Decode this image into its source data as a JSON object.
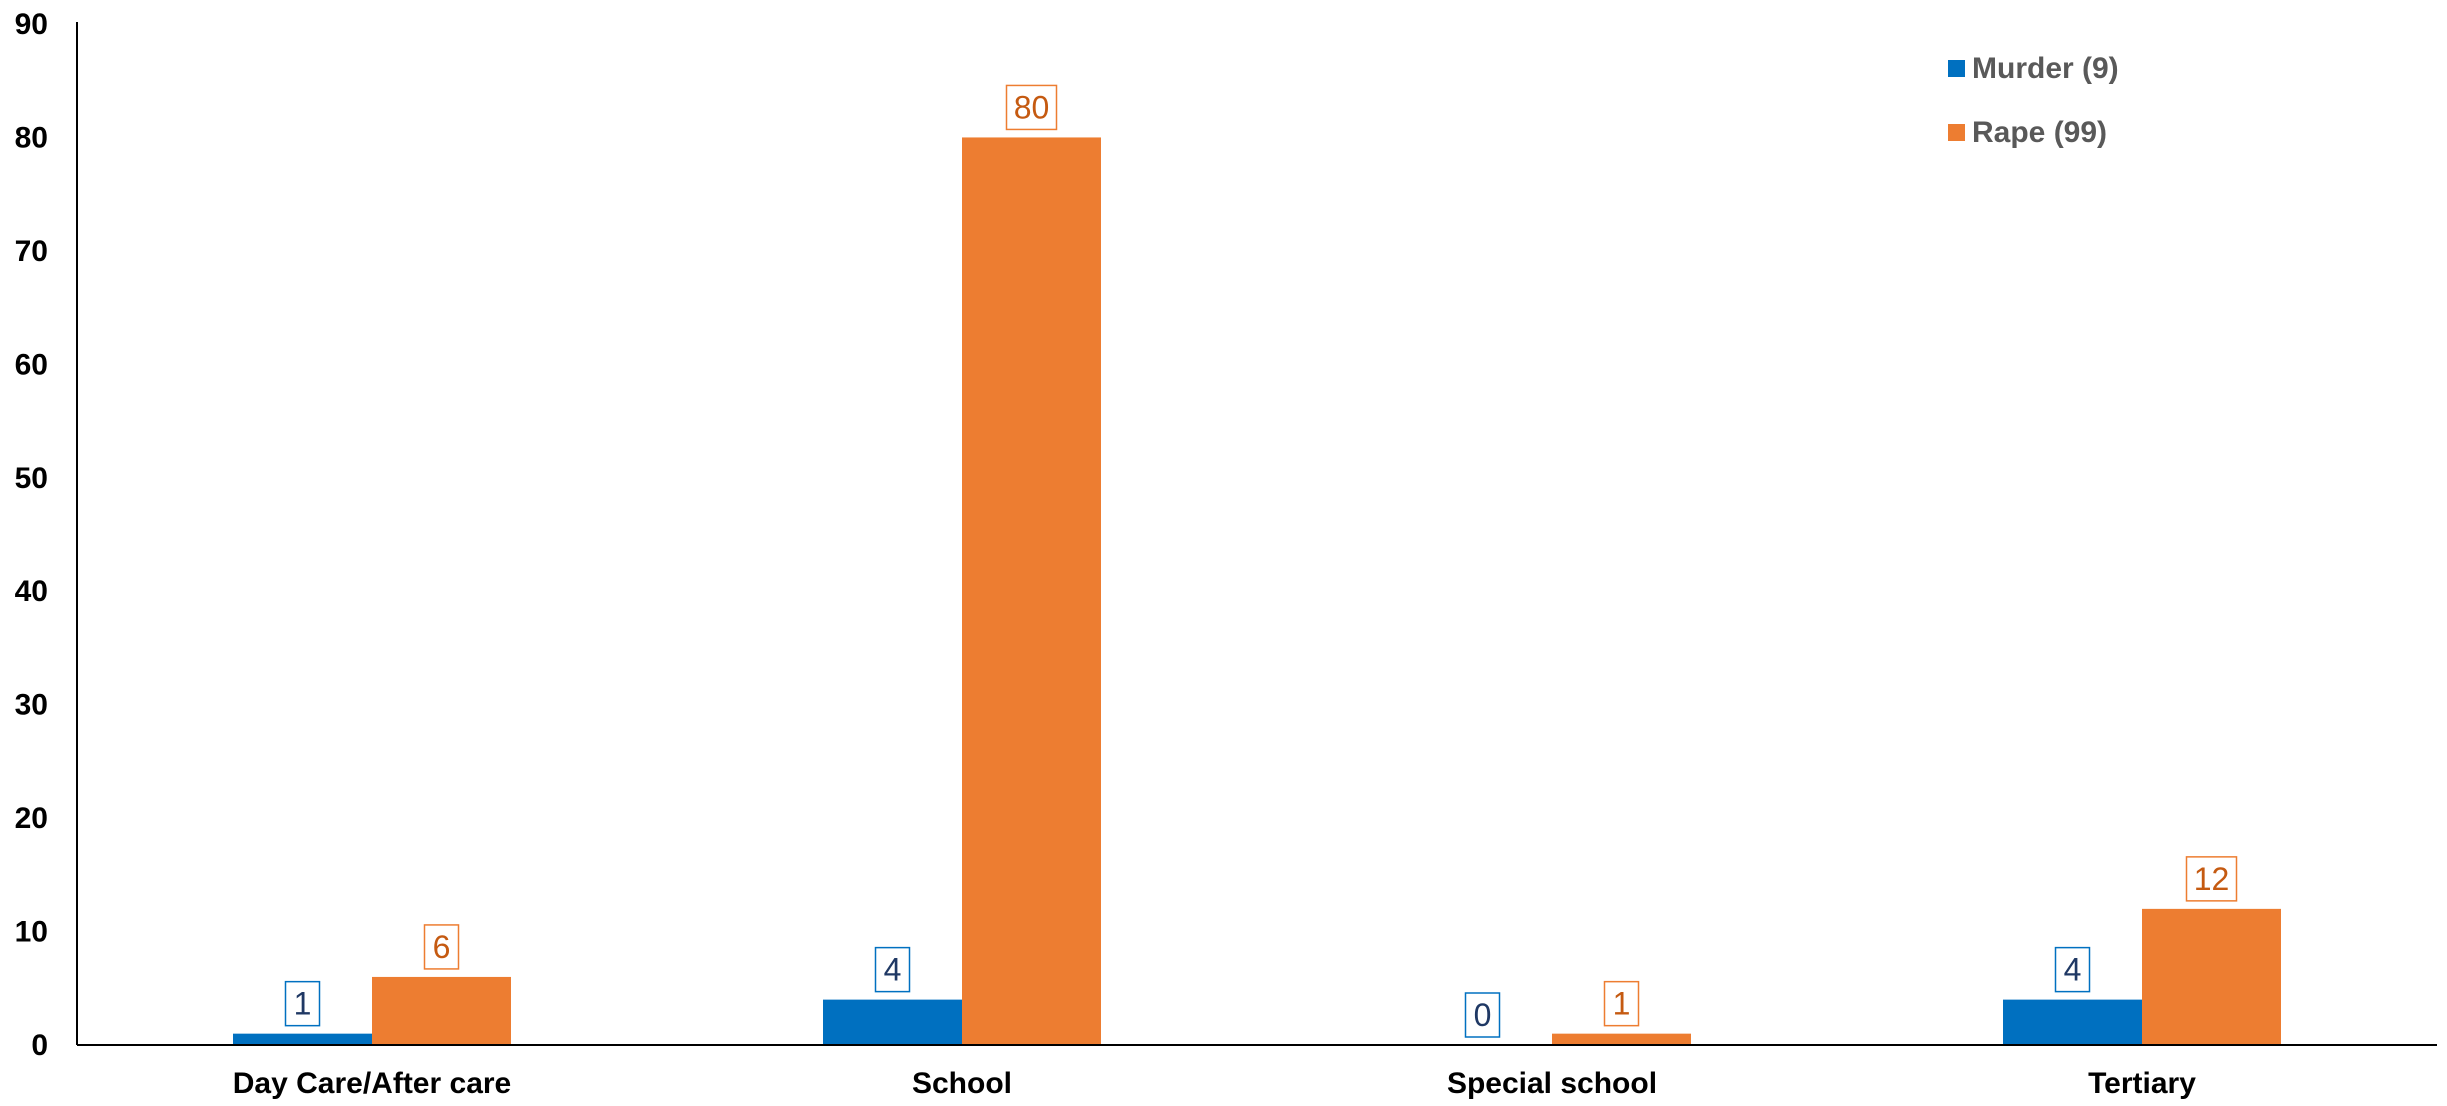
{
  "chart_data": {
    "type": "bar",
    "title": "",
    "xlabel": "",
    "ylabel": "",
    "ylim": [
      0,
      90
    ],
    "yticks": [
      0,
      10,
      20,
      30,
      40,
      50,
      60,
      70,
      80,
      90
    ],
    "grid": false,
    "legend_position": "top-right",
    "categories": [
      "Day Care/After care",
      "School",
      "Special school",
      "Tertiary"
    ],
    "series": [
      {
        "name": "Murder (9)",
        "color": "#0070C0",
        "label_color": "#1F3864",
        "values": [
          1,
          4,
          0,
          4
        ]
      },
      {
        "name": "Rape (99)",
        "color": "#ED7D31",
        "label_color": "#C55A11",
        "values": [
          6,
          80,
          1,
          12
        ]
      }
    ]
  }
}
